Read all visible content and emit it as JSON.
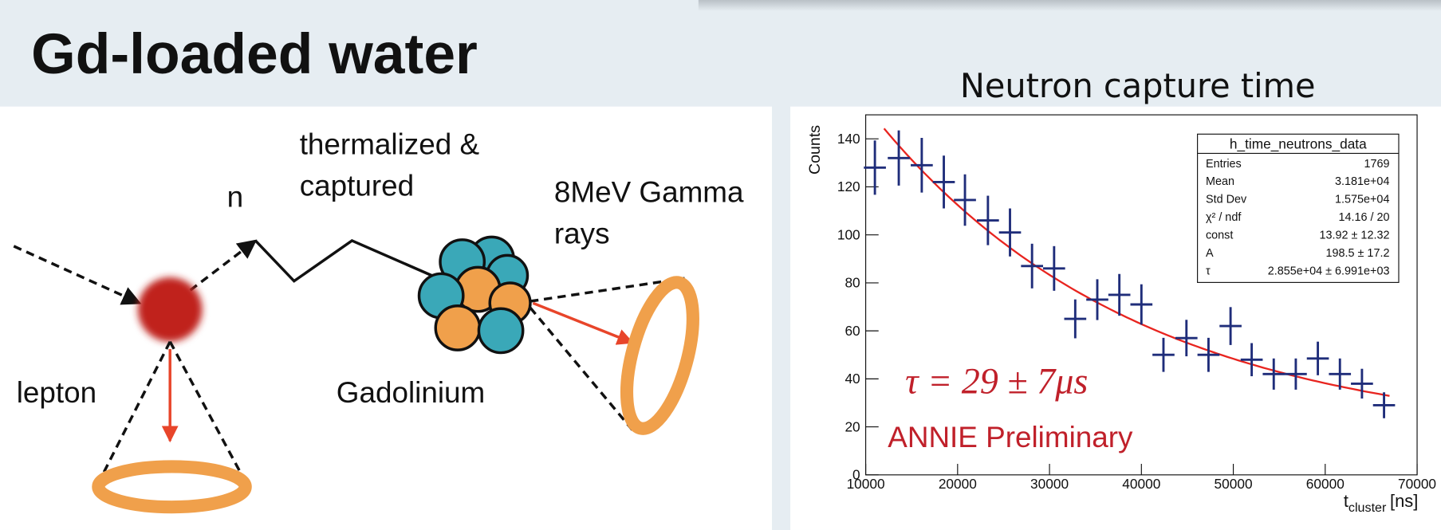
{
  "slide": {
    "title": "Gd-loaded water"
  },
  "diagram": {
    "labels": [
      "thermalized &",
      "captured",
      "n",
      "8MeV Gamma",
      "rays",
      "lepton",
      "Gadolinium"
    ]
  },
  "chart_data": {
    "type": "errorbar",
    "title": "Neutron capture time",
    "y_label": "Counts",
    "x_label": {
      "main": "t",
      "sub": "cluster",
      "unit": "[ns]"
    },
    "xlim": [
      10000,
      70000
    ],
    "ylim": [
      0,
      150
    ],
    "xticks": [
      10000,
      20000,
      30000,
      40000,
      50000,
      60000,
      70000
    ],
    "yticks": [
      0,
      20,
      40,
      60,
      80,
      100,
      120,
      140
    ],
    "series": [
      {
        "name": "h_time_neutrons_data",
        "color": "#1f2d7a",
        "x": [
          11000,
          13600,
          16100,
          18500,
          20800,
          23300,
          25700,
          28100,
          30500,
          32800,
          35200,
          37600,
          40000,
          42400,
          44900,
          47300,
          49700,
          52000,
          54400,
          56800,
          59200,
          61600,
          64000,
          66400
        ],
        "values": [
          128,
          132,
          129,
          122,
          114.5,
          106,
          101,
          87,
          86,
          65,
          73,
          75,
          71,
          50,
          57,
          50,
          62,
          48,
          42,
          42,
          48.5,
          42,
          38,
          29
        ],
        "yerr": [
          11.3,
          11.5,
          11.4,
          11,
          10.7,
          10.3,
          10,
          9.3,
          9.3,
          8.1,
          8.5,
          8.7,
          8.4,
          7.1,
          7.6,
          7.1,
          7.9,
          6.9,
          6.5,
          6.5,
          7,
          6.5,
          6.2,
          5.4
        ],
        "xerr": 1200
      }
    ],
    "fit": {
      "const": 13.92,
      "A": 198.5,
      "tau": 28550,
      "x": [
        12000,
        67000
      ],
      "color": "#e8241f"
    },
    "stats": [
      [
        "Entries",
        "1769"
      ],
      [
        "Mean",
        "3.181e+04"
      ],
      [
        "Std Dev",
        "1.575e+04"
      ],
      [
        "χ² / ndf",
        "14.16 / 20"
      ],
      [
        "const",
        "13.92 ± 12.32"
      ],
      [
        "A",
        "198.5 ± 17.2"
      ],
      [
        "τ",
        "2.855e+04 ± 6.991e+03"
      ]
    ],
    "annotations": [
      "τ = 29 ± 7μs",
      "ANNIE Preliminary"
    ]
  }
}
